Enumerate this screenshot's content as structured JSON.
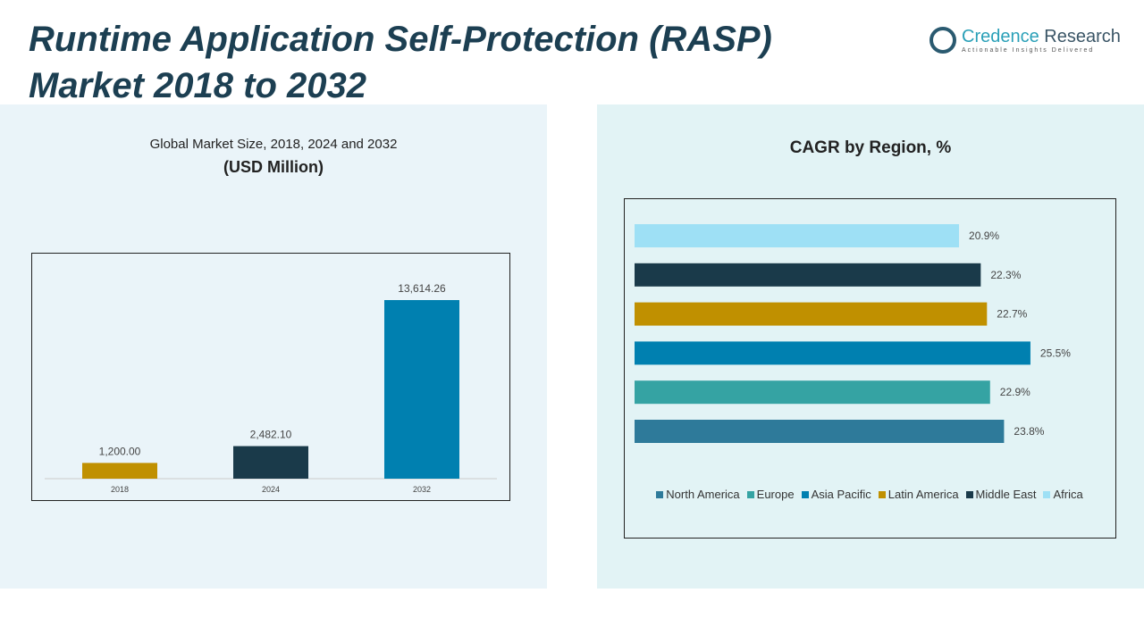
{
  "header": {
    "title_line1": "Runtime Application Self-Protection (RASP)",
    "title_line2": "Market 2018 to 2032"
  },
  "logo": {
    "name1": "Credence",
    "name2": "Research",
    "tagline": "Actionable Insights Delivered"
  },
  "left": {
    "subtitle": "Global Market Size, 2018, 2024 and 2032",
    "unit": "(USD Million)"
  },
  "right": {
    "title": "CAGR by Region, %"
  },
  "chart_data": [
    {
      "type": "bar",
      "title": "Global Market Size, 2018, 2024 and 2032",
      "ylabel": "USD Million",
      "categories": [
        "2018",
        "2024",
        "2032"
      ],
      "values": [
        1200.0,
        2482.1,
        13614.26
      ],
      "labels": [
        "1,200.00",
        "2,482.10",
        "13,614.26"
      ],
      "colors": [
        "#c09000",
        "#1a3a4a",
        "#0080b0"
      ],
      "ylim": [
        0,
        16300
      ]
    },
    {
      "type": "bar",
      "orientation": "horizontal",
      "title": "CAGR by Region, %",
      "categories": [
        "Africa",
        "Middle East",
        "Latin America",
        "Asia Pacific",
        "Europe",
        "North America"
      ],
      "values": [
        20.9,
        22.3,
        22.7,
        25.5,
        22.9,
        23.8
      ],
      "labels": [
        "20.9%",
        "22.3%",
        "22.7%",
        "25.5%",
        "22.9%",
        "23.8%"
      ],
      "colors": [
        "#9ee0f5",
        "#1a3a4a",
        "#c09000",
        "#0080b0",
        "#35a3a3",
        "#2e7a9a"
      ],
      "legend": [
        "North America",
        "Europe",
        "Asia Pacific",
        "Latin America",
        "Middle East",
        "Africa"
      ],
      "legend_colors": [
        "#2e7a9a",
        "#35a3a3",
        "#0080b0",
        "#c09000",
        "#1a3a4a",
        "#9ee0f5"
      ],
      "legend_position": "bottom"
    }
  ]
}
